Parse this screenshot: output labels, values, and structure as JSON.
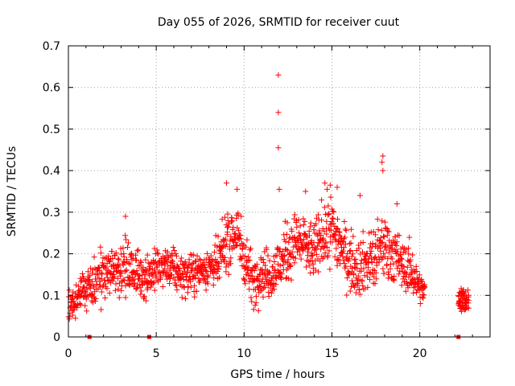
{
  "chart_data": {
    "type": "scatter",
    "title": "Day 055 of 2026, SRMTID for receiver cuut",
    "xlabel": "GPS time / hours",
    "ylabel": "SRMTID / TECUs",
    "xlim": [
      0,
      24
    ],
    "ylim": [
      0,
      0.7
    ],
    "xticks": [
      0,
      5,
      10,
      15,
      20
    ],
    "xtick_labels": [
      "0",
      "5",
      "10",
      "15",
      "20"
    ],
    "yticks": [
      0,
      0.1,
      0.2,
      0.3,
      0.4,
      0.5,
      0.6,
      0.7
    ],
    "ytick_labels": [
      "0",
      "0.1",
      "0.2",
      "0.3",
      "0.4",
      "0.5",
      "0.6",
      "0.7"
    ],
    "grid": true,
    "marker": "+",
    "series": [
      {
        "name": "SRMTID",
        "color": "#ff0000",
        "profile_x": [
          0.0,
          0.5,
          1.0,
          1.5,
          2.0,
          2.5,
          3.0,
          3.5,
          4.0,
          4.5,
          5.0,
          5.5,
          6.0,
          6.5,
          7.0,
          7.5,
          8.0,
          8.5,
          9.0,
          9.5,
          10.0,
          10.5,
          11.0,
          11.5,
          12.0,
          12.5,
          13.0,
          13.5,
          14.0,
          14.5,
          15.0,
          15.5,
          16.0,
          16.5,
          17.0,
          17.5,
          18.0,
          18.5,
          19.0,
          19.5,
          20.0,
          20.3
        ],
        "profile_median": [
          0.07,
          0.09,
          0.11,
          0.13,
          0.15,
          0.16,
          0.17,
          0.16,
          0.15,
          0.15,
          0.16,
          0.17,
          0.16,
          0.15,
          0.15,
          0.16,
          0.17,
          0.17,
          0.23,
          0.25,
          0.2,
          0.13,
          0.16,
          0.15,
          0.17,
          0.21,
          0.23,
          0.22,
          0.2,
          0.25,
          0.26,
          0.22,
          0.18,
          0.17,
          0.18,
          0.19,
          0.22,
          0.2,
          0.17,
          0.16,
          0.12,
          0.11
        ],
        "profile_spread": [
          0.03,
          0.04,
          0.04,
          0.05,
          0.05,
          0.05,
          0.06,
          0.05,
          0.05,
          0.05,
          0.04,
          0.04,
          0.04,
          0.04,
          0.04,
          0.04,
          0.04,
          0.05,
          0.06,
          0.07,
          0.06,
          0.05,
          0.05,
          0.05,
          0.06,
          0.06,
          0.06,
          0.06,
          0.06,
          0.07,
          0.07,
          0.06,
          0.06,
          0.06,
          0.06,
          0.07,
          0.07,
          0.06,
          0.05,
          0.05,
          0.03,
          0.03
        ],
        "late_segment": {
          "x_range": [
            22.2,
            22.8
          ],
          "median": 0.09,
          "spread": 0.025
        },
        "outliers": [
          {
            "x": 11.95,
            "y": 0.63
          },
          {
            "x": 11.95,
            "y": 0.54
          },
          {
            "x": 11.95,
            "y": 0.455
          },
          {
            "x": 12.0,
            "y": 0.355
          },
          {
            "x": 17.9,
            "y": 0.435
          },
          {
            "x": 17.85,
            "y": 0.42
          },
          {
            "x": 17.9,
            "y": 0.4
          },
          {
            "x": 9.0,
            "y": 0.37
          },
          {
            "x": 14.6,
            "y": 0.37
          },
          {
            "x": 14.9,
            "y": 0.365
          },
          {
            "x": 15.3,
            "y": 0.36
          },
          {
            "x": 9.6,
            "y": 0.355
          },
          {
            "x": 13.5,
            "y": 0.35
          },
          {
            "x": 18.7,
            "y": 0.32
          },
          {
            "x": 3.25,
            "y": 0.29
          },
          {
            "x": 16.6,
            "y": 0.34
          }
        ],
        "zero_markers_x": [
          1.2,
          4.6,
          22.2
        ]
      }
    ]
  }
}
